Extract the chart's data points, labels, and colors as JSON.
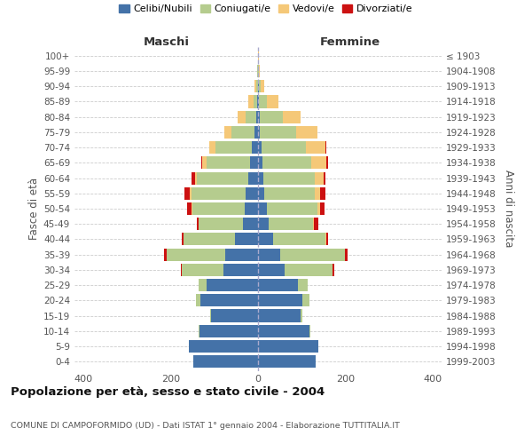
{
  "age_groups": [
    "0-4",
    "5-9",
    "10-14",
    "15-19",
    "20-24",
    "25-29",
    "30-34",
    "35-39",
    "40-44",
    "45-49",
    "50-54",
    "55-59",
    "60-64",
    "65-69",
    "70-74",
    "75-79",
    "80-84",
    "85-89",
    "90-94",
    "95-99",
    "100+"
  ],
  "birth_years": [
    "1999-2003",
    "1994-1998",
    "1989-1993",
    "1984-1988",
    "1979-1983",
    "1974-1978",
    "1969-1973",
    "1964-1968",
    "1959-1963",
    "1954-1958",
    "1949-1953",
    "1944-1948",
    "1939-1943",
    "1934-1938",
    "1929-1933",
    "1924-1928",
    "1919-1923",
    "1914-1918",
    "1909-1913",
    "1904-1908",
    "≤ 1903"
  ],
  "colors": {
    "celibi": "#4472a8",
    "coniugati": "#b5cc8e",
    "vedovi": "#f5c878",
    "divorziati": "#cc1111"
  },
  "maschi": {
    "celibi": [
      148,
      158,
      133,
      108,
      132,
      118,
      80,
      75,
      52,
      35,
      30,
      28,
      22,
      18,
      15,
      8,
      4,
      3,
      1,
      1,
      1
    ],
    "coniugati": [
      0,
      0,
      2,
      2,
      10,
      18,
      95,
      135,
      118,
      100,
      120,
      125,
      118,
      100,
      82,
      52,
      24,
      8,
      3,
      1,
      0
    ],
    "vedovi": [
      0,
      0,
      0,
      0,
      0,
      0,
      0,
      0,
      0,
      0,
      2,
      3,
      5,
      10,
      15,
      18,
      18,
      12,
      5,
      1,
      0
    ],
    "divorziati": [
      0,
      0,
      0,
      0,
      0,
      0,
      2,
      5,
      5,
      5,
      10,
      12,
      8,
      2,
      0,
      0,
      0,
      0,
      0,
      0,
      0
    ]
  },
  "femmine": {
    "celibi": [
      132,
      138,
      118,
      98,
      102,
      92,
      60,
      50,
      35,
      25,
      20,
      15,
      12,
      10,
      8,
      5,
      4,
      3,
      2,
      1,
      1
    ],
    "coniugati": [
      0,
      0,
      2,
      3,
      15,
      22,
      110,
      148,
      120,
      100,
      115,
      115,
      118,
      112,
      102,
      82,
      52,
      18,
      5,
      1,
      0
    ],
    "vedovi": [
      0,
      0,
      0,
      0,
      0,
      0,
      0,
      1,
      1,
      3,
      8,
      12,
      20,
      35,
      45,
      48,
      42,
      25,
      8,
      2,
      1
    ],
    "divorziati": [
      0,
      0,
      0,
      0,
      0,
      0,
      5,
      5,
      5,
      10,
      10,
      12,
      5,
      3,
      2,
      0,
      0,
      0,
      0,
      0,
      0
    ]
  },
  "xlim": 420,
  "title": "Popolazione per età, sesso e stato civile - 2004",
  "subtitle": "COMUNE DI CAMPOFORMIDO (UD) - Dati ISTAT 1° gennaio 2004 - Elaborazione TUTTITALIA.IT",
  "ylabel_left": "Fasce di età",
  "ylabel_right": "Anni di nascita",
  "legend_labels": [
    "Celibi/Nubili",
    "Coniugati/e",
    "Vedovi/e",
    "Divorziati/e"
  ]
}
